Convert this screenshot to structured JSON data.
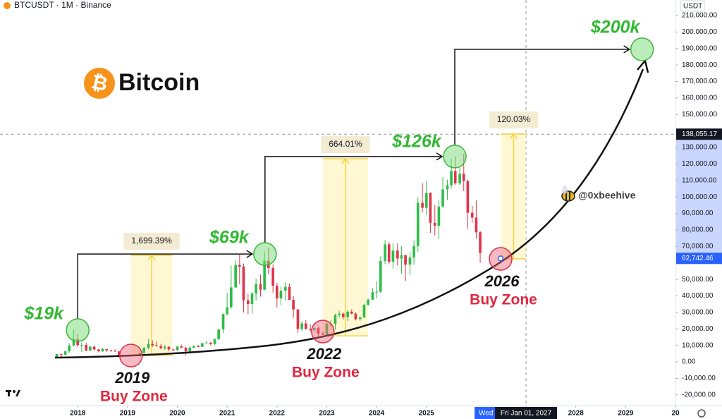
{
  "chart_data": {
    "type": "candlestick",
    "title": "BTCUSDT · 1M · Binance",
    "currency": "USDT",
    "logo_symbol": "₿",
    "logo_text": "Bitcoin",
    "watermark": "@0xbeehive",
    "up_color": "#2ebd49",
    "down_color": "#e0344a",
    "grid": false,
    "x": [
      2017.58,
      2017.67,
      2017.75,
      2017.83,
      2017.92,
      2018,
      2018.08,
      2018.17,
      2018.25,
      2018.33,
      2018.42,
      2018.5,
      2018.58,
      2018.67,
      2018.75,
      2018.83,
      2018.92,
      2019,
      2019.08,
      2019.17,
      2019.25,
      2019.33,
      2019.42,
      2019.5,
      2019.58,
      2019.67,
      2019.75,
      2019.83,
      2019.92,
      2020,
      2020.08,
      2020.17,
      2020.25,
      2020.33,
      2020.42,
      2020.5,
      2020.58,
      2020.67,
      2020.75,
      2020.83,
      2020.92,
      2021,
      2021.08,
      2021.17,
      2021.25,
      2021.33,
      2021.42,
      2021.5,
      2021.58,
      2021.67,
      2021.75,
      2021.83,
      2021.92,
      2022,
      2022.08,
      2022.17,
      2022.25,
      2022.33,
      2022.42,
      2022.5,
      2022.58,
      2022.67,
      2022.75,
      2022.83,
      2022.92,
      2023,
      2023.08,
      2023.17,
      2023.25,
      2023.33,
      2023.42,
      2023.5,
      2023.58,
      2023.67,
      2023.75,
      2023.83,
      2023.92,
      2024,
      2024.08,
      2024.17,
      2024.25,
      2024.33,
      2024.42,
      2024.5,
      2024.58,
      2024.67,
      2024.75,
      2024.83,
      2024.92,
      2025,
      2025.08,
      2025.17,
      2025.25,
      2025.33,
      2025.42,
      2025.5,
      2025.58,
      2025.67,
      2025.75,
      2025.83,
      2025.92,
      2026,
      2026.08
    ],
    "open": [
      2870,
      4700,
      4340,
      6450,
      10000,
      13800,
      10200,
      10300,
      6900,
      9240,
      7500,
      6400,
      7730,
      7030,
      6630,
      6370,
      4040,
      3740,
      3460,
      3820,
      4100,
      5320,
      8560,
      10820,
      10080,
      9600,
      8300,
      9150,
      7540,
      7190,
      9350,
      8600,
      6410,
      8620,
      9450,
      9140,
      11350,
      11650,
      10780,
      13800,
      19700,
      28990,
      33110,
      45140,
      58740,
      57700,
      37300,
      35040,
      41460,
      47100,
      43800,
      61300,
      56900,
      46200,
      38480,
      43160,
      45510,
      37640,
      31800,
      19940,
      23300,
      20050,
      19420,
      20490,
      17170,
      16540,
      23130,
      23140,
      28480,
      29230,
      27210,
      30470,
      29230,
      25940,
      26970,
      34640,
      37720,
      42280,
      42580,
      61130,
      71280,
      60670,
      67490,
      62680,
      64620,
      58970,
      63330,
      70220,
      96410,
      93430,
      102430,
      84350,
      82550,
      94200,
      104600,
      107130,
      115760,
      108250,
      114050,
      109600,
      90400,
      87500,
      78600
    ],
    "high": [
      4740,
      4980,
      6470,
      11400,
      19700,
      17200,
      11800,
      11700,
      9750,
      9990,
      7780,
      8500,
      7760,
      7410,
      7680,
      6620,
      4240,
      4140,
      4200,
      4140,
      5620,
      9080,
      13880,
      13200,
      12330,
      10960,
      10370,
      9520,
      7870,
      9580,
      10500,
      9190,
      9470,
      10070,
      10380,
      11450,
      12480,
      12070,
      14100,
      19950,
      29300,
      41950,
      58350,
      61800,
      64850,
      59600,
      41330,
      42400,
      50500,
      52950,
      67000,
      69000,
      59100,
      47990,
      45800,
      48190,
      47450,
      40000,
      31980,
      24670,
      25210,
      22800,
      21090,
      21480,
      18390,
      23960,
      25250,
      29180,
      31000,
      29820,
      31390,
      31800,
      30180,
      27490,
      35280,
      38450,
      44700,
      48970,
      63970,
      73800,
      72800,
      71980,
      71950,
      70080,
      65100,
      66500,
      73620,
      99800,
      108300,
      109600,
      102750,
      95000,
      97900,
      111980,
      110530,
      123200,
      124400,
      117900,
      126200,
      110600,
      94600,
      97900,
      79400
    ],
    "low": [
      2810,
      2980,
      4110,
      5500,
      9400,
      9000,
      6000,
      6450,
      6430,
      7030,
      5750,
      6080,
      5880,
      6100,
      6210,
      3650,
      3150,
      3350,
      3380,
      3690,
      4060,
      5290,
      7530,
      9100,
      9320,
      7720,
      7300,
      6520,
      6430,
      6850,
      8410,
      3800,
      6150,
      8120,
      8830,
      8980,
      11100,
      9880,
      10370,
      13200,
      17570,
      28130,
      32300,
      45000,
      47040,
      30000,
      28800,
      29280,
      37330,
      39600,
      43300,
      53250,
      42000,
      32930,
      34300,
      37150,
      37380,
      26700,
      17600,
      18780,
      19520,
      18130,
      18190,
      15480,
      16260,
      16500,
      21350,
      19550,
      26940,
      25810,
      24800,
      28860,
      25170,
      24900,
      26540,
      34100,
      37610,
      38550,
      41880,
      59220,
      59190,
      56550,
      58400,
      53490,
      49000,
      52550,
      58900,
      66800,
      90500,
      89160,
      78250,
      76550,
      74400,
      93380,
      98200,
      105100,
      107350,
      107270,
      103500,
      80600,
      84400,
      74600,
      60000
    ],
    "close": [
      4700,
      4340,
      6450,
      10000,
      13800,
      10200,
      10300,
      6900,
      9240,
      7500,
      6400,
      7730,
      7030,
      6630,
      6370,
      4040,
      3740,
      3460,
      3820,
      4100,
      5320,
      8560,
      10820,
      10080,
      9600,
      8300,
      9150,
      7540,
      7190,
      9350,
      8600,
      6410,
      8620,
      9450,
      9140,
      11350,
      11650,
      10780,
      13800,
      19700,
      28990,
      33110,
      45140,
      58740,
      57700,
      37300,
      35040,
      41460,
      47100,
      43800,
      61300,
      56900,
      46200,
      38480,
      43160,
      45510,
      37640,
      31800,
      19940,
      23300,
      20050,
      19420,
      20490,
      17170,
      16540,
      23130,
      23140,
      28480,
      29230,
      27210,
      30470,
      29230,
      25940,
      26970,
      34640,
      37720,
      42280,
      42580,
      61130,
      71280,
      60670,
      67490,
      62680,
      64620,
      58970,
      63330,
      70220,
      96410,
      93430,
      102430,
      84350,
      82550,
      94200,
      104600,
      107130,
      115760,
      108250,
      114050,
      109600,
      90400,
      87500,
      78600,
      66000
    ],
    "xlim": [
      2016.44,
      2030
    ],
    "xticks": [
      2018,
      2019,
      2020,
      2021,
      2022,
      2023,
      2024,
      2025,
      2027,
      2028,
      2029,
      {
        "value": 2030,
        "label": "20"
      }
    ],
    "ylim": [
      -26500,
      219400
    ],
    "yticks": [
      {
        "value": 210000,
        "label": "210,000.00"
      },
      {
        "value": 200000,
        "label": "200,000.00"
      },
      {
        "value": 190000,
        "label": "190,000.00"
      },
      {
        "value": 180000,
        "label": "180,000.00"
      },
      {
        "value": 170000,
        "label": "170,000.00"
      },
      {
        "value": 160000,
        "label": "160,000.00"
      },
      {
        "value": 150000,
        "label": "150,000.00"
      },
      {
        "value": 130000,
        "label": "130,000.00"
      },
      {
        "value": 120000,
        "label": "120,000.00"
      },
      {
        "value": 110000,
        "label": "110,000.00"
      },
      {
        "value": 100000,
        "label": "100,000.00"
      },
      {
        "value": 90000,
        "label": "90,000.00"
      },
      {
        "value": 80000,
        "label": "80,000.00"
      },
      {
        "value": 70000,
        "label": "70,000.00"
      },
      {
        "value": 50000,
        "label": "50,000.00"
      },
      {
        "value": 40000,
        "label": "40,000.00"
      },
      {
        "value": 30000,
        "label": "30,000.00"
      },
      {
        "value": 20000,
        "label": "20,000.00"
      },
      {
        "value": 10000,
        "label": "10,000.00"
      },
      {
        "value": 0,
        "label": "0.00"
      },
      {
        "value": -10000,
        "label": "-10,000.00"
      },
      {
        "value": -20000,
        "label": "-20,000.00"
      }
    ],
    "crosshair": {
      "x": {
        "value": 2027,
        "label": "Fri Jan 01, 2027"
      },
      "y": {
        "value": 138055.17,
        "label": "138,055.17"
      }
    },
    "last_price": {
      "value": 62742.46,
      "label": "62,742.46"
    },
    "last_date_label": "Wed Ju",
    "peaks": [
      {
        "label": "$19k",
        "x": 2018,
        "y": 19250
      },
      {
        "label": "$69k",
        "x": 2021.76,
        "y": 65400
      },
      {
        "label": "$126k",
        "x": 2025.57,
        "y": 124500
      },
      {
        "label": "$200k",
        "x": 2029.33,
        "y": 189500
      }
    ],
    "buy_zones": [
      {
        "year": "2019",
        "label": "Buy Zone",
        "x": 2019.07,
        "y": 3850
      },
      {
        "year": "2022",
        "label": "Buy Zone",
        "x": 2022.92,
        "y": 18400
      },
      {
        "year": "2026",
        "label": "Buy Zone",
        "x": 2026.49,
        "y": 62450
      }
    ],
    "measures": [
      {
        "label": "1,699.39%",
        "x": [
          2019.07,
          2019.9
        ],
        "y": [
          3850,
          64600
        ]
      },
      {
        "label": "664.01%",
        "x": [
          2022.92,
          2023.83
        ],
        "y": [
          15800,
          123200
        ]
      },
      {
        "label": "120.03%",
        "x": [
          2026.5,
          2027
        ],
        "y": [
          62450,
          138150
        ]
      }
    ]
  }
}
